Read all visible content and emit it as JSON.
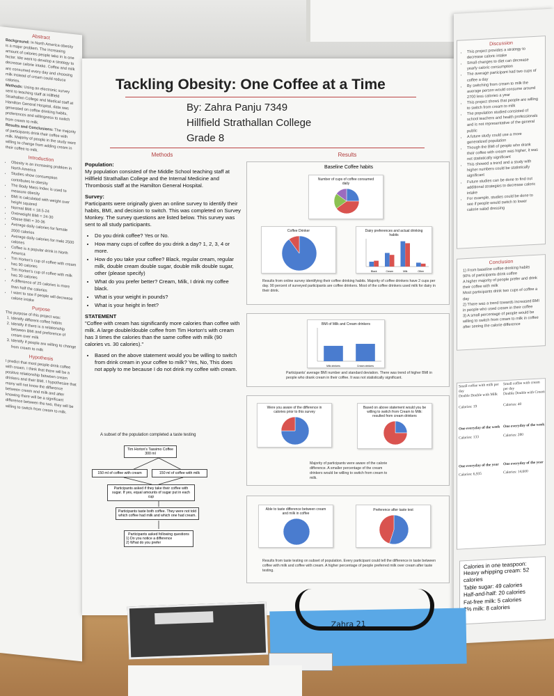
{
  "poster": {
    "title": "Tackling Obesity: One Coffee at a Time",
    "author": "By: Zahra Panju 7349",
    "school": "Hillfield Strathallan College",
    "grade": "Grade 8"
  },
  "left_panel": {
    "abstract_heading": "Abstract",
    "background_label": "Background:",
    "background_text": "In North America obesity is a major problem. The increasing amount of calories people take in is one factor. We want to develop a strategy to decrease calorie intake. Coffee and milk are consumed every day and choosing milk instead of cream could reduce calories.",
    "methods_label": "Methods:",
    "methods_text": "Using an electronic survey sent to teaching staff at Hillfield Strathallan College and Medical staff at Hamilton General Hospital, data was generated on coffee drinking habits, preferences and willingness to switch from cream to milk.",
    "results_label": "Results and Conclusions:",
    "results_text": "The majority of participants drink their coffee with milk. Majority of people in the study were willing to change from adding cream in their coffee to milk.",
    "introduction_heading": "Introduction",
    "introduction_items": [
      "Obesity is an increasing problem in North America",
      "Studies show consumption contributes to obesity",
      "The Body Mass Index is used to measure obesity",
      "BMI is calculated with weight over height squared",
      "Normal BMI = 18.5-24",
      "Overweight BMI = 24-30",
      "Obese BMI = 30-36",
      "Average daily calories for female 2000 calories",
      "Average daily calories for male 2500 calories",
      "Coffee is a popular drink in North America",
      "Tim Horton's cup of coffee with cream has 90 calories",
      "Tim Horton's cup of coffee with milk has 30 calories",
      "A difference of 25 calories is more than half the calories",
      "I want to see if people will decrease calorie intake"
    ],
    "purpose_heading": "Purpose",
    "purpose_intro": "The purpose of this project was:",
    "purpose_items": [
      "Identify different coffee habits",
      "Identify if there is a relationship between BMI and preference of cream over milk",
      "Identify if people are willing to change from cream to milk"
    ],
    "hypothesis_heading": "Hypothesis",
    "hypothesis_text": "I predict that most people drink coffee with cream. I think that there will be a positive relationship between cream drinkers and their BMI. I hypothesize that many will not know the difference between cream and milk and after knowing there will be a significant difference between the two, they will be willing to switch from cream to milk."
  },
  "center": {
    "methods_heading": "Methods",
    "results_heading": "Results",
    "population_label": "Population:",
    "population_text": "My population consisted of the Middle School teaching staff at Hillfield Strathallan College and the Internal Medicine and Thrombosis staff at the Hamilton General Hospital.",
    "survey_label": "Survey:",
    "survey_text": "Participants were originally given an online survey to identify their habits, BMI, and decision to switch. This was completed on Survey Monkey. The survey questions are listed below. This survey was sent to all study participants.",
    "survey_questions": [
      "Do you drink coffee? Yes or No.",
      "How many cups of coffee do you drink a day? 1, 2, 3, 4 or more.",
      "How do you take your coffee? Black, regular cream, regular milk, double cream double sugar, double milk double sugar, other (please specify)",
      "What do you prefer better? Cream, Milk, I drink my coffee black.",
      "What is your weight in pounds?",
      "What is your height in feet?"
    ],
    "statement_label": "STATEMENT",
    "statement_text": "\"Coffee with cream has significantly more calories than coffee with milk. A large double/double coffee from Tim Horton's with cream has 3 times the calories than the same coffee with milk (90 calories vs. 30 calories).\"",
    "statement_question": "Based on the above statement would you be willing to switch from drink cream in your coffee to milk? Yes, No, This does not apply to me because I do not drink my coffee with cream.",
    "taste_intro": "A subset of the population completed a taste testing",
    "flow": {
      "top": "Tim Horton's Tassimo Coffee\n300 ml",
      "left": "150 ml of coffee with cream",
      "right": "150 ml of coffee with milk",
      "step1": "Participants asked if they take their coffee with sugar. If yes, equal amounts of sugar put in each cup",
      "step2": "Participants taste both coffee. They were not told which coffee had milk and which one had cream.",
      "step3_title": "Participants asked following questions",
      "step3_q1": "1)    Do you notice a difference",
      "step3_q2": "2)    What do you prefer"
    }
  },
  "results": {
    "baseline_title": "Baseline Coffee habits",
    "cups_title": "Number of cups of coffee consumed daily",
    "drinker_title": "Coffee Drinker",
    "dairy_title": "Dairy preferences and actual drinking habits",
    "baseline_caption": "Results from online survey identifying their coffee drinking habits. Majority of coffee drinkers have 2 cups per day. 90 percent of surveyed participants are coffee drinkers. Most of the coffee drinkers used milk for dairy in their drink.",
    "bmi_title": "BMI of Milk and Cream drinkers",
    "bmi_caption": "Participants' average BMI number and standard deviation. There was trend of higher BMI in people who drank cream in their coffee. It was not statistically significant.",
    "aware_title": "Were you aware of the difference in calories prior to this survey",
    "switch_title": "Based on above statement would you be willing to switch from Cream to Milk: resulted from cream drinkers",
    "aware_caption": "Majority of participants were aware of the calorie difference. A smaller percentage of the cream drinkers would be willing to switch from cream to milk.",
    "taste_diff_title": "Able to taste difference between cream and milk in coffee",
    "taste_pref_title": "Preference after taste test",
    "taste_caption": "Results from taste testing on subset of population. Every participant could tell the difference in taste between coffee with milk and coffee with cream. A higher percentage of people preferred milk over cream after taste testing."
  },
  "right_panel": {
    "discussion_heading": "Discussion",
    "discussion_items": [
      "This project provides a strategy to decrease caloric intake",
      "Small changes to diet can decrease yearly caloric consumption",
      "The average participant had two cups of coffee a day",
      "By switching from cream to milk the average person would consume around 2700 less calories a year",
      "This project shows that people are willing to switch from cream to milk",
      "The population studied consisted of school teachers and health professionals and is not representative of the general public",
      "A future study could use a more generalized population",
      "Though the BMI of people who drank their coffee with cream was higher, it was not statistically significant",
      "This showed a trend and a study with higher numbers could be statistically significant",
      "Future studies can be done to find out additional strategies to decrease caloric intake",
      "For example, studies could be done to see if people would switch to lower calorie salad dressing"
    ],
    "conclusion_heading": "Conclusion",
    "conclusion_items": [
      "1) From baseline coffee drinking habits",
      "90% of participants drink coffee",
      "A higher majority of people prefer and drink their coffee with milk",
      "Most participants drink two cups of coffee a day",
      "2) There was a trend towards increased BMI in people who used cream in their coffee",
      "3) A small percentage of people would be willing to switch from cream to milk in coffee after seeing the calorie difference"
    ],
    "calorie_table": {
      "milk_header": "Small coffee with milk per day",
      "cream_header": "Small coffee with cream per day",
      "milk_sub": "Double Double with Milk",
      "cream_sub": "Double Double with Cream",
      "milk_day": "Calories: 19",
      "cream_day": "Calories: 40",
      "week_milk_label": "One everyday of the week",
      "week_cream_label": "One everyday of the week",
      "week_milk": "Calories: 133",
      "week_cream": "Calories: 280",
      "year_milk_label": "One everyday of the year",
      "year_cream_label": "One everyday of the year",
      "year_milk": "Calories: 6,935",
      "year_cream": "Calories: 14,600"
    },
    "teaspoon_title": "Calories in one teaspoon:",
    "teaspoon_items": [
      "Heavy whipping cream: 52 calories",
      "Table sugar: 49 calories",
      "Half-and-half: 20 calories",
      "Fat-free milk: 5 calories",
      "2% milk: 8 calories"
    ]
  },
  "table_items": {
    "folder_label": "Zahra 21"
  },
  "chart_data": [
    {
      "type": "pie",
      "title": "Number of cups of coffee consumed daily",
      "categories": [
        "1",
        "2",
        "3",
        "4 or more"
      ],
      "values": [
        25,
        40,
        20,
        15
      ]
    },
    {
      "type": "pie",
      "title": "Coffee Drinker",
      "categories": [
        "Yes",
        "No"
      ],
      "values": [
        90,
        10
      ]
    },
    {
      "type": "bar",
      "title": "Dairy preferences and actual drinking habits",
      "categories": [
        "Black",
        "Cream",
        "Milk",
        "Other"
      ],
      "series": [
        {
          "values": [
            5,
            14,
            26,
            4
          ]
        },
        {
          "values": [
            6,
            12,
            24,
            3
          ]
        }
      ]
    },
    {
      "type": "bar",
      "title": "BMI of Milk and Cream drinkers",
      "categories": [
        "Milk drinkers",
        "Cream drinkers"
      ],
      "values": [
        23,
        26
      ],
      "ylim": [
        0,
        50
      ]
    },
    {
      "type": "pie",
      "title": "Were you aware of the difference in calories prior to this survey",
      "categories": [
        "Yes",
        "No"
      ],
      "values": [
        75,
        25
      ]
    },
    {
      "type": "pie",
      "title": "Based on above statement would you be willing to switch from Cream to Milk: resulted from cream drinkers",
      "categories": [
        "Yes",
        "No"
      ],
      "values": [
        25,
        75
      ]
    },
    {
      "type": "pie",
      "title": "Able to taste difference between cream and milk in coffee",
      "categories": [
        "Yes"
      ],
      "values": [
        100
      ]
    },
    {
      "type": "pie",
      "title": "Preference after taste test",
      "categories": [
        "Milk",
        "Cream"
      ],
      "values": [
        55,
        45
      ]
    }
  ]
}
